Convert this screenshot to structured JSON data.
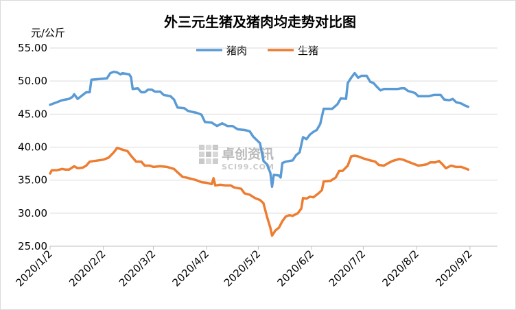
{
  "chart_data": {
    "type": "line",
    "title": "外三元生猪及猪肉均走势对比图",
    "ylabel": "元/公斤",
    "xlabel": "",
    "ylim": [
      25,
      55
    ],
    "yticks": [
      "25.00",
      "30.00",
      "35.00",
      "40.00",
      "45.00",
      "50.00",
      "55.00"
    ],
    "x_start": "2020-01-02",
    "x_end": "2020-09-18",
    "xticks": [
      {
        "label": "2020/1/2",
        "date": "2020-01-02"
      },
      {
        "label": "2020/2/2",
        "date": "2020-02-02"
      },
      {
        "label": "2020/3/2",
        "date": "2020-03-02"
      },
      {
        "label": "2020/4/2",
        "date": "2020-04-02"
      },
      {
        "label": "2020/5/2",
        "date": "2020-05-02"
      },
      {
        "label": "2020/6/2",
        "date": "2020-06-02"
      },
      {
        "label": "2020/7/2",
        "date": "2020-07-02"
      },
      {
        "label": "2020/8/2",
        "date": "2020-08-02"
      },
      {
        "label": "2020/9/2",
        "date": "2020-09-02"
      }
    ],
    "grid": "horizontal",
    "legend": "top-center",
    "series": [
      {
        "name": "猪肉",
        "color": "#5b9bd5",
        "points": [
          [
            "2020-01-02",
            46.4
          ],
          [
            "2020-01-06",
            46.8
          ],
          [
            "2020-01-09",
            47.1
          ],
          [
            "2020-01-11",
            47.2
          ],
          [
            "2020-01-13",
            47.3
          ],
          [
            "2020-01-15",
            47.6
          ],
          [
            "2020-01-16",
            48.0
          ],
          [
            "2020-01-18",
            47.3
          ],
          [
            "2020-01-21",
            47.9
          ],
          [
            "2020-01-23",
            48.3
          ],
          [
            "2020-01-25",
            48.3
          ],
          [
            "2020-01-26",
            50.2
          ],
          [
            "2020-02-04",
            50.4
          ],
          [
            "2020-02-06",
            51.2
          ],
          [
            "2020-02-08",
            51.4
          ],
          [
            "2020-02-10",
            51.3
          ],
          [
            "2020-02-12",
            51.0
          ],
          [
            "2020-02-13",
            51.2
          ],
          [
            "2020-02-17",
            51.0
          ],
          [
            "2020-02-18",
            50.6
          ],
          [
            "2020-02-19",
            48.8
          ],
          [
            "2020-02-22",
            48.9
          ],
          [
            "2020-02-24",
            48.3
          ],
          [
            "2020-02-26",
            48.3
          ],
          [
            "2020-02-28",
            48.7
          ],
          [
            "2020-03-01",
            48.7
          ],
          [
            "2020-03-03",
            48.4
          ],
          [
            "2020-03-06",
            48.4
          ],
          [
            "2020-03-08",
            47.9
          ],
          [
            "2020-03-12",
            47.7
          ],
          [
            "2020-03-14",
            47.2
          ],
          [
            "2020-03-16",
            46.0
          ],
          [
            "2020-03-20",
            45.9
          ],
          [
            "2020-03-22",
            45.5
          ],
          [
            "2020-03-25",
            45.3
          ],
          [
            "2020-03-27",
            45.2
          ],
          [
            "2020-03-30",
            44.9
          ],
          [
            "2020-04-01",
            43.8
          ],
          [
            "2020-04-05",
            43.7
          ],
          [
            "2020-04-08",
            43.2
          ],
          [
            "2020-04-11",
            43.6
          ],
          [
            "2020-04-14",
            43.2
          ],
          [
            "2020-04-17",
            43.2
          ],
          [
            "2020-04-20",
            42.7
          ],
          [
            "2020-04-24",
            42.6
          ],
          [
            "2020-04-27",
            42.4
          ],
          [
            "2020-04-29",
            41.6
          ],
          [
            "2020-05-03",
            40.6
          ],
          [
            "2020-05-05",
            37.9
          ],
          [
            "2020-05-07",
            37.4
          ],
          [
            "2020-05-09",
            36.1
          ],
          [
            "2020-05-10",
            34.0
          ],
          [
            "2020-05-11",
            35.8
          ],
          [
            "2020-05-14",
            35.7
          ],
          [
            "2020-05-15",
            35.4
          ],
          [
            "2020-05-16",
            37.6
          ],
          [
            "2020-05-18",
            37.8
          ],
          [
            "2020-05-22",
            38.0
          ],
          [
            "2020-05-24",
            38.8
          ],
          [
            "2020-05-26",
            39.2
          ],
          [
            "2020-05-28",
            41.5
          ],
          [
            "2020-05-30",
            41.2
          ],
          [
            "2020-06-01",
            41.9
          ],
          [
            "2020-06-03",
            42.3
          ],
          [
            "2020-06-05",
            42.6
          ],
          [
            "2020-06-07",
            43.5
          ],
          [
            "2020-06-09",
            45.8
          ],
          [
            "2020-06-11",
            45.8
          ],
          [
            "2020-06-14",
            45.8
          ],
          [
            "2020-06-17",
            46.5
          ],
          [
            "2020-06-19",
            47.4
          ],
          [
            "2020-06-22",
            47.3
          ],
          [
            "2020-06-23",
            49.7
          ],
          [
            "2020-06-25",
            50.5
          ],
          [
            "2020-06-27",
            51.2
          ],
          [
            "2020-06-29",
            50.5
          ],
          [
            "2020-07-01",
            50.8
          ],
          [
            "2020-07-04",
            50.8
          ],
          [
            "2020-07-06",
            49.9
          ],
          [
            "2020-07-08",
            49.7
          ],
          [
            "2020-07-10",
            49.1
          ],
          [
            "2020-07-12",
            48.6
          ],
          [
            "2020-07-14",
            48.8
          ],
          [
            "2020-07-18",
            48.8
          ],
          [
            "2020-07-22",
            48.8
          ],
          [
            "2020-07-24",
            48.9
          ],
          [
            "2020-07-26",
            48.9
          ],
          [
            "2020-07-28",
            48.5
          ],
          [
            "2020-08-01",
            48.2
          ],
          [
            "2020-08-03",
            47.7
          ],
          [
            "2020-08-09",
            47.7
          ],
          [
            "2020-08-12",
            47.9
          ],
          [
            "2020-08-16",
            47.9
          ],
          [
            "2020-08-18",
            47.2
          ],
          [
            "2020-08-21",
            47.1
          ],
          [
            "2020-08-23",
            47.3
          ],
          [
            "2020-08-25",
            46.8
          ],
          [
            "2020-08-28",
            46.6
          ],
          [
            "2020-08-30",
            46.3
          ],
          [
            "2020-09-01",
            46.1
          ]
        ]
      },
      {
        "name": "生猪",
        "color": "#ed7d31",
        "points": [
          [
            "2020-01-02",
            36.0
          ],
          [
            "2020-01-03",
            36.5
          ],
          [
            "2020-01-06",
            36.5
          ],
          [
            "2020-01-09",
            36.7
          ],
          [
            "2020-01-11",
            36.6
          ],
          [
            "2020-01-13",
            36.6
          ],
          [
            "2020-01-16",
            37.1
          ],
          [
            "2020-01-18",
            36.8
          ],
          [
            "2020-01-21",
            36.9
          ],
          [
            "2020-01-23",
            37.2
          ],
          [
            "2020-01-25",
            37.8
          ],
          [
            "2020-02-02",
            38.1
          ],
          [
            "2020-02-05",
            38.4
          ],
          [
            "2020-02-08",
            39.2
          ],
          [
            "2020-02-10",
            39.9
          ],
          [
            "2020-02-12",
            39.7
          ],
          [
            "2020-02-16",
            39.4
          ],
          [
            "2020-02-18",
            38.7
          ],
          [
            "2020-02-21",
            37.8
          ],
          [
            "2020-02-24",
            37.8
          ],
          [
            "2020-02-26",
            37.2
          ],
          [
            "2020-02-29",
            37.2
          ],
          [
            "2020-03-02",
            37.0
          ],
          [
            "2020-03-06",
            37.1
          ],
          [
            "2020-03-10",
            37.0
          ],
          [
            "2020-03-14",
            36.7
          ],
          [
            "2020-03-16",
            36.2
          ],
          [
            "2020-03-19",
            35.5
          ],
          [
            "2020-03-21",
            35.4
          ],
          [
            "2020-03-24",
            35.2
          ],
          [
            "2020-03-27",
            35.0
          ],
          [
            "2020-03-30",
            34.7
          ],
          [
            "2020-04-02",
            34.6
          ],
          [
            "2020-04-05",
            34.4
          ],
          [
            "2020-04-06",
            35.3
          ],
          [
            "2020-04-07",
            34.2
          ],
          [
            "2020-04-10",
            34.3
          ],
          [
            "2020-04-13",
            34.2
          ],
          [
            "2020-04-16",
            34.2
          ],
          [
            "2020-04-18",
            33.9
          ],
          [
            "2020-04-22",
            33.7
          ],
          [
            "2020-04-24",
            33.0
          ],
          [
            "2020-04-27",
            32.8
          ],
          [
            "2020-04-30",
            32.3
          ],
          [
            "2020-05-03",
            32.0
          ],
          [
            "2020-05-05",
            31.5
          ],
          [
            "2020-05-07",
            29.5
          ],
          [
            "2020-05-09",
            27.8
          ],
          [
            "2020-05-10",
            26.6
          ],
          [
            "2020-05-12",
            27.4
          ],
          [
            "2020-05-14",
            27.8
          ],
          [
            "2020-05-16",
            28.8
          ],
          [
            "2020-05-18",
            29.5
          ],
          [
            "2020-05-20",
            29.7
          ],
          [
            "2020-05-22",
            29.6
          ],
          [
            "2020-05-25",
            30.0
          ],
          [
            "2020-05-27",
            30.7
          ],
          [
            "2020-05-28",
            32.3
          ],
          [
            "2020-05-30",
            32.2
          ],
          [
            "2020-06-01",
            32.5
          ],
          [
            "2020-06-03",
            32.4
          ],
          [
            "2020-06-06",
            33.0
          ],
          [
            "2020-06-08",
            33.5
          ],
          [
            "2020-06-09",
            34.8
          ],
          [
            "2020-06-13",
            34.9
          ],
          [
            "2020-06-16",
            35.4
          ],
          [
            "2020-06-18",
            36.4
          ],
          [
            "2020-06-20",
            36.4
          ],
          [
            "2020-06-23",
            37.2
          ],
          [
            "2020-06-25",
            38.6
          ],
          [
            "2020-06-27",
            38.7
          ],
          [
            "2020-06-29",
            38.6
          ],
          [
            "2020-07-02",
            38.3
          ],
          [
            "2020-07-06",
            38.0
          ],
          [
            "2020-07-09",
            37.8
          ],
          [
            "2020-07-11",
            37.3
          ],
          [
            "2020-07-14",
            37.2
          ],
          [
            "2020-07-16",
            37.5
          ],
          [
            "2020-07-19",
            37.9
          ],
          [
            "2020-07-23",
            38.2
          ],
          [
            "2020-07-25",
            38.1
          ],
          [
            "2020-07-28",
            37.8
          ],
          [
            "2020-07-31",
            37.5
          ],
          [
            "2020-08-03",
            37.2
          ],
          [
            "2020-08-06",
            37.3
          ],
          [
            "2020-08-08",
            37.4
          ],
          [
            "2020-08-10",
            37.7
          ],
          [
            "2020-08-13",
            37.7
          ],
          [
            "2020-08-15",
            37.9
          ],
          [
            "2020-08-17",
            37.4
          ],
          [
            "2020-08-19",
            36.8
          ],
          [
            "2020-08-22",
            37.2
          ],
          [
            "2020-08-25",
            37.0
          ],
          [
            "2020-08-28",
            37.0
          ],
          [
            "2020-08-30",
            36.8
          ],
          [
            "2020-09-01",
            36.6
          ]
        ]
      }
    ]
  },
  "watermark": {
    "brand": "卓创资讯",
    "site": "SCI99.COM"
  }
}
